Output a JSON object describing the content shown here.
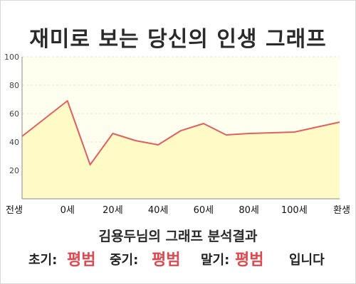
{
  "title": "재미로 보는 당신의 인생 그래프",
  "chart_data": {
    "type": "area",
    "categories": [
      "전생",
      "0세",
      "20세",
      "40세",
      "60세",
      "80세",
      "100세",
      "환생"
    ],
    "x": [
      -20,
      0,
      10,
      20,
      30,
      40,
      50,
      60,
      70,
      80,
      100,
      120
    ],
    "values": [
      44,
      69,
      24,
      46,
      41,
      38,
      48,
      53,
      45,
      46,
      47,
      54
    ],
    "yticks": [
      20,
      40,
      60,
      80,
      100
    ],
    "ylim": [
      0,
      100
    ],
    "xlim": [
      -20,
      120
    ],
    "grid": true,
    "colors": {
      "line": "#e06060",
      "fill": "#fffac6",
      "plot_bg": "#fffff0"
    }
  },
  "result": {
    "title": "김용두님의 그래프 분석결과",
    "early_label": "초기:",
    "early_value": "평범",
    "mid_label": "중기:",
    "mid_value": "평범",
    "late_label": "말기:",
    "late_value": "평범",
    "suffix": "입니다"
  }
}
